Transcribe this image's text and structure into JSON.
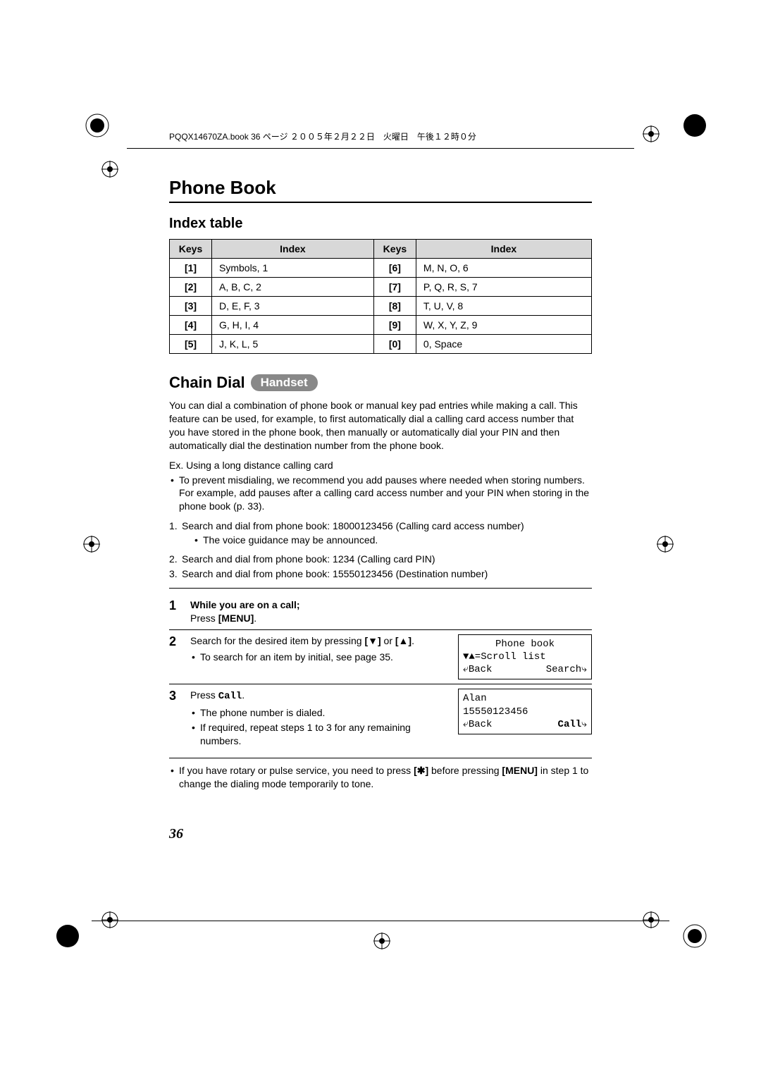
{
  "printer_header": "PQQX14670ZA.book  36 ページ  ２００５年２月２２日　火曜日　午後１２時０分",
  "section_title": "Phone Book",
  "index_table": {
    "title": "Index table",
    "headers": [
      "Keys",
      "Index",
      "Keys",
      "Index"
    ],
    "rows": [
      [
        "[1]",
        "Symbols, 1",
        "[6]",
        "M, N, O, 6"
      ],
      [
        "[2]",
        "A, B, C, 2",
        "[7]",
        "P, Q, R, S, 7"
      ],
      [
        "[3]",
        "D, E, F, 3",
        "[8]",
        "T, U, V, 8"
      ],
      [
        "[4]",
        "G, H, I, 4",
        "[9]",
        "W, X, Y, Z, 9"
      ],
      [
        "[5]",
        "J, K, L, 5",
        "[0]",
        "0, Space"
      ]
    ]
  },
  "chain_dial": {
    "heading": "Chain Dial",
    "badge": "Handset",
    "intro": "You can dial a combination of phone book or manual key pad entries while making a call. This feature can be used, for example, to first automatically dial a calling card access number that you have stored in the phone book, then manually or automatically dial your PIN and then automatically dial the destination number from the phone book.",
    "example_label": "Ex. Using a long distance calling card",
    "example_note": "To prevent misdialing, we recommend you add pauses where needed when storing numbers. For example, add pauses after a calling card access number and your PIN when storing in the phone book (p. 33).",
    "example_steps": [
      {
        "num": "1.",
        "text": "Search and dial from phone book: 18000123456 (Calling card access number)",
        "sub": "The voice guidance may be announced."
      },
      {
        "num": "2.",
        "text": "Search and dial from phone book: 1234 (Calling card PIN)"
      },
      {
        "num": "3.",
        "text": "Search and dial from phone book: 15550123456 (Destination number)"
      }
    ],
    "steps": [
      {
        "num": "1",
        "bold_prefix": "While you are on a call;",
        "line2_prefix": "Press ",
        "line2_bold": "[MENU]",
        "line2_suffix": "."
      },
      {
        "num": "2",
        "text_prefix": "Search for the desired item by pressing ",
        "key1": "[▼]",
        "mid": " or ",
        "key2": "[▲]",
        "suffix": ".",
        "bullet": "To search for an item by initial, see page 35.",
        "screen": {
          "line1": "Phone book",
          "line2": "▼▲=Scroll list",
          "left": "⤶Back",
          "right": "Search⤷"
        }
      },
      {
        "num": "3",
        "text_prefix": "Press ",
        "mono": "Call",
        "suffix": ".",
        "bullet1": "The phone number is dialed.",
        "bullet2": "If required, repeat steps 1 to 3 for any remaining numbers.",
        "screen": {
          "line1": "Alan",
          "line2": "15550123456",
          "left": "⤶Back",
          "right_bold": "Call",
          "right_arrow": "⤷"
        }
      }
    ],
    "footnote_prefix": "If you have rotary or pulse service, you need to press ",
    "footnote_key": "[✱]",
    "footnote_mid": " before pressing ",
    "footnote_bold": "[MENU]",
    "footnote_suffix": " in step 1 to change the dialing mode temporarily to tone."
  },
  "page_number": "36",
  "colors": {
    "text": "#000000",
    "table_header_bg": "#d8d8d8",
    "badge_bg": "#888888",
    "badge_fg": "#ffffff"
  }
}
